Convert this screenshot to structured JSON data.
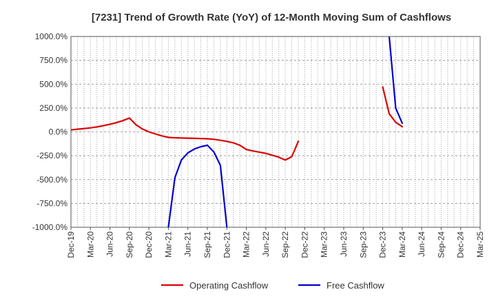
{
  "chart_data": {
    "type": "line",
    "title": "[7231]  Trend of Growth Rate (YoY) of 12-Month Moving Sum of Cashflows",
    "xlabel": "",
    "ylabel": "",
    "ylim": [
      -1000,
      1000
    ],
    "y_ticks": [
      1000,
      750,
      500,
      250,
      0,
      -250,
      -500,
      -750,
      -1000
    ],
    "y_tick_labels": [
      "1000.0%",
      "750.0%",
      "500.0%",
      "250.0%",
      "0.0%",
      "-250.0%",
      "-500.0%",
      "-750.0%",
      "-1000.0%"
    ],
    "x_ticks": [
      "2019-12",
      "2020-03",
      "2020-06",
      "2020-09",
      "2020-12",
      "2021-03",
      "2021-06",
      "2021-09",
      "2021-12",
      "2022-03",
      "2022-06",
      "2022-09",
      "2022-12",
      "2023-03",
      "2023-06",
      "2023-09",
      "2023-12",
      "2024-03",
      "2024-06",
      "2024-09",
      "2024-12",
      "2025-03"
    ],
    "x_tick_labels": [
      "Dec-19",
      "Mar-20",
      "Jun-20",
      "Sep-20",
      "Dec-20",
      "Mar-21",
      "Jun-21",
      "Sep-21",
      "Dec-21",
      "Mar-22",
      "Jun-22",
      "Sep-22",
      "Dec-22",
      "Mar-23",
      "Jun-23",
      "Sep-23",
      "Dec-23",
      "Mar-24",
      "Jun-24",
      "Sep-24",
      "Dec-24",
      "Mar-25"
    ],
    "grid": true,
    "legend_position": "bottom-center",
    "series": [
      {
        "name": "Operating Cashflow",
        "color": "#dd0000",
        "points": [
          [
            "2019-12",
            20
          ],
          [
            "2020-01",
            28
          ],
          [
            "2020-02",
            35
          ],
          [
            "2020-03",
            42
          ],
          [
            "2020-04",
            52
          ],
          [
            "2020-05",
            65
          ],
          [
            "2020-06",
            80
          ],
          [
            "2020-07",
            97
          ],
          [
            "2020-08",
            118
          ],
          [
            "2020-09",
            145
          ],
          [
            "2020-10",
            75
          ],
          [
            "2020-11",
            30
          ],
          [
            "2020-12",
            0
          ],
          [
            "2021-01",
            -22
          ],
          [
            "2021-02",
            -42
          ],
          [
            "2021-03",
            -58
          ],
          [
            "2021-04",
            -62
          ],
          [
            "2021-05",
            -64
          ],
          [
            "2021-06",
            -66
          ],
          [
            "2021-07",
            -68
          ],
          [
            "2021-08",
            -70
          ],
          [
            "2021-09",
            -72
          ],
          [
            "2021-10",
            -78
          ],
          [
            "2021-11",
            -88
          ],
          [
            "2021-12",
            -100
          ],
          [
            "2022-01",
            -115
          ],
          [
            "2022-02",
            -140
          ],
          [
            "2022-03",
            -185
          ],
          [
            "2022-04",
            -200
          ],
          [
            "2022-05",
            -212
          ],
          [
            "2022-06",
            -225
          ],
          [
            "2022-07",
            -245
          ],
          [
            "2022-08",
            -265
          ],
          [
            "2022-09",
            -295
          ],
          [
            "2022-10",
            -260
          ],
          [
            "2022-11",
            -100
          ],
          null,
          [
            "2023-12",
            470
          ],
          [
            "2024-01",
            190
          ],
          [
            "2024-02",
            100
          ],
          [
            "2024-03",
            55
          ]
        ]
      },
      {
        "name": "Free Cashflow",
        "color": "#0000cc",
        "points": [
          [
            "2021-03",
            -1000
          ],
          [
            "2021-04",
            -480
          ],
          [
            "2021-05",
            -295
          ],
          [
            "2021-06",
            -220
          ],
          [
            "2021-07",
            -180
          ],
          [
            "2021-08",
            -155
          ],
          [
            "2021-09",
            -140
          ],
          [
            "2021-10",
            -210
          ],
          [
            "2021-11",
            -350
          ],
          [
            "2021-12",
            -1000
          ],
          null,
          [
            "2024-01",
            1000
          ],
          [
            "2024-02",
            250
          ],
          [
            "2024-03",
            90
          ]
        ]
      }
    ]
  }
}
